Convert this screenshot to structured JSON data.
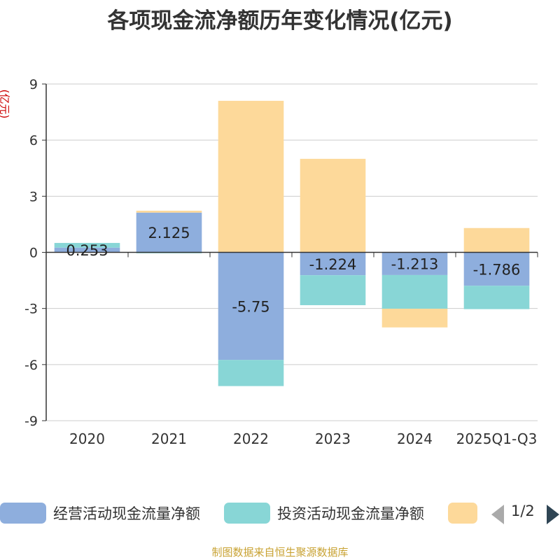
{
  "chart_data": {
    "type": "bar",
    "stacked": true,
    "title": "各项现金流净额历年变化情况(亿元)",
    "ylabel": "(亿元)",
    "categories": [
      "2020",
      "2021",
      "2022",
      "2023",
      "2024",
      "2025Q1-Q3"
    ],
    "ylim": [
      -9,
      9
    ],
    "yticks": [
      9,
      6,
      3,
      0,
      -3,
      -6,
      -9
    ],
    "grid": true,
    "legend_position": "bottom",
    "series": [
      {
        "name": "经营活动现金流量净额",
        "color": "#8eaedd",
        "values": [
          0.253,
          2.125,
          -5.75,
          -1.224,
          -1.213,
          -1.786
        ],
        "labels": [
          "0.253",
          "2.125",
          "-5.75",
          "-1.224",
          "-1.213",
          "-1.786"
        ]
      },
      {
        "name": "投资活动现金流量净额",
        "color": "#88d6d6",
        "values": [
          0.25,
          -0.05,
          -1.4,
          -1.6,
          -1.8,
          -1.25
        ]
      },
      {
        "name": "",
        "color": "#fdd99a",
        "values": [
          0.0,
          0.1,
          8.1,
          5.0,
          -1.0,
          1.3
        ]
      }
    ]
  },
  "legend": {
    "items": [
      "经营活动现金流量净额",
      "投资活动现金流量净额",
      ""
    ],
    "page": "1/2"
  },
  "source": "制图数据来自恒生聚源数据库"
}
